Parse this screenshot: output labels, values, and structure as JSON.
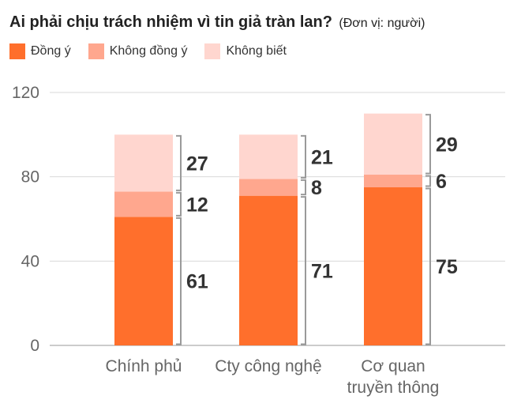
{
  "chart_data": {
    "type": "bar",
    "stacked": true,
    "title": "Ai phải chịu trách nhiệm vì tin giả tràn lan?",
    "unit_note": "(Đơn vị: người)",
    "categories": [
      [
        "Chính phủ"
      ],
      [
        "Cty công nghệ"
      ],
      [
        "Cơ quan",
        "truyền thông"
      ]
    ],
    "series": [
      {
        "name": "Đồng ý",
        "color": "#ff6f2c",
        "values": [
          61,
          71,
          75
        ]
      },
      {
        "name": "Không đồng ý",
        "color": "#ffa78e",
        "values": [
          12,
          8,
          6
        ]
      },
      {
        "name": "Không biết",
        "color": "#ffd6cf",
        "values": [
          27,
          21,
          29
        ]
      }
    ],
    "ylim": [
      0,
      120
    ],
    "yticks": [
      "0",
      "40",
      "80",
      "120"
    ],
    "grid": true,
    "legend": "top-left"
  }
}
